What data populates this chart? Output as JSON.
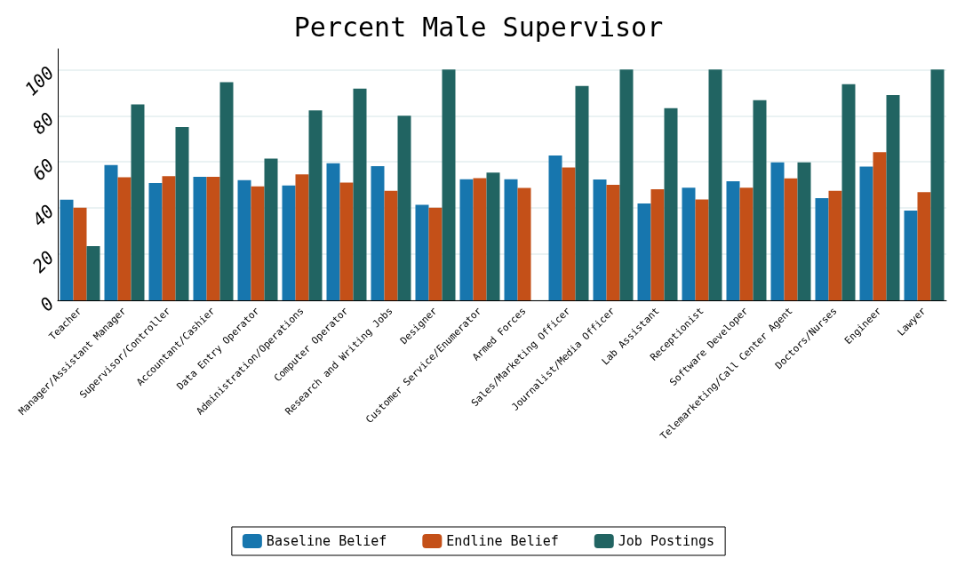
{
  "chart_data": {
    "type": "bar",
    "title": "Percent Male Supervisor",
    "categories": [
      "Teacher",
      "Manager/Assistant Manager",
      "Supervisor/Controller",
      "Accountant/Cashier",
      "Data Entry Operator",
      "Administration/Operations",
      "Computer Operator",
      "Research and Writing Jobs",
      "Designer",
      "Customer Service/Enumerator",
      "Armed Forces",
      "Sales/Marketing Officer",
      "Journalist/Media Officer",
      "Lab Assistant",
      "Receptionist",
      "Software Developer",
      "Telemarketing/Call Center Agent",
      "Doctors/Nurses",
      "Engineer",
      "Lawyer"
    ],
    "series": [
      {
        "name": "Baseline Belief",
        "color": "#1776ae",
        "values": [
          43.6,
          58.6,
          50.8,
          53.5,
          52.1,
          49.8,
          59.4,
          58.2,
          41.4,
          52.5,
          52.5,
          62.8,
          52.4,
          42.0,
          48.8,
          51.6,
          59.8,
          44.3,
          58.0,
          38.9
        ]
      },
      {
        "name": "Endline Belief",
        "color": "#c45018",
        "values": [
          40.2,
          53.3,
          53.8,
          53.5,
          49.4,
          54.6,
          51.0,
          47.5,
          40.2,
          53.0,
          48.7,
          57.6,
          50.1,
          48.1,
          43.7,
          48.8,
          52.9,
          47.5,
          64.2,
          46.9
        ]
      },
      {
        "name": "Job Postings",
        "color": "#216462",
        "values": [
          23.5,
          84.9,
          75.1,
          94.6,
          61.4,
          82.3,
          91.8,
          80.0,
          100,
          55.4,
          null,
          92.9,
          100,
          83.3,
          100,
          86.8,
          59.8,
          93.7,
          89.0,
          100
        ]
      }
    ],
    "ylim": [
      0,
      109
    ],
    "yticks": [
      0,
      20,
      40,
      60,
      80,
      100
    ],
    "grid": "y",
    "legend": "bottom"
  }
}
